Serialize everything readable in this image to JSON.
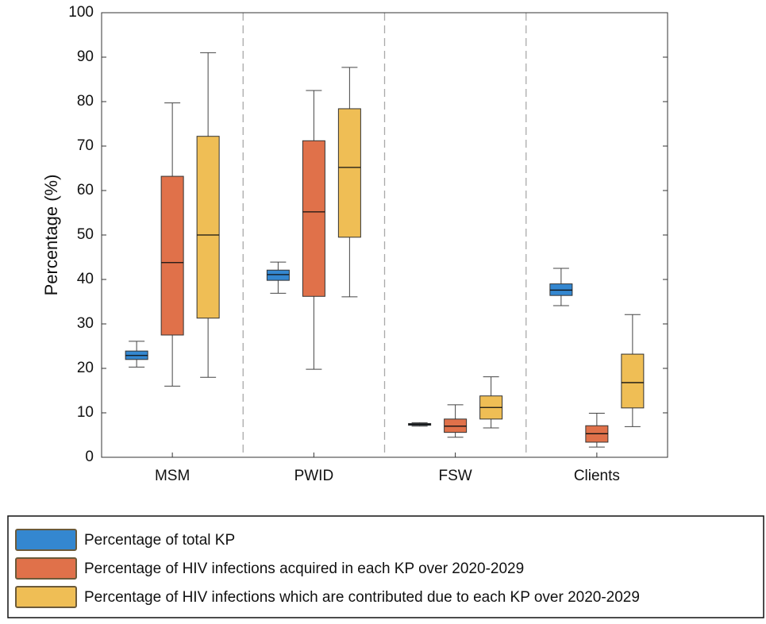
{
  "chart_data": {
    "type": "box",
    "ylabel": "Percentage (%)",
    "categories": [
      "MSM",
      "PWID",
      "FSW",
      "Clients"
    ],
    "ylim": [
      0,
      100
    ],
    "yticks": [
      0,
      10,
      20,
      30,
      40,
      50,
      60,
      70,
      80,
      90,
      100
    ],
    "grid": false,
    "legend": "bottom",
    "series": [
      {
        "name": "Percentage of total KP",
        "color": "#3487d0",
        "min": [
          20.3,
          36.9,
          7.0,
          34.1
        ],
        "q1": [
          22.0,
          39.8,
          7.2,
          36.4
        ],
        "median": [
          22.9,
          41.1,
          7.4,
          37.6
        ],
        "q3": [
          23.9,
          42.1,
          7.6,
          39.0
        ],
        "max": [
          26.1,
          43.9,
          7.8,
          42.5
        ]
      },
      {
        "name": "Percentage of HIV infections acquired in each KP over 2020-2029",
        "color": "#e0714a",
        "min": [
          16.0,
          19.8,
          4.5,
          2.3
        ],
        "q1": [
          27.5,
          36.2,
          5.6,
          3.4
        ],
        "median": [
          43.8,
          55.2,
          7.0,
          5.3
        ],
        "q3": [
          63.2,
          71.2,
          8.6,
          7.1
        ],
        "max": [
          79.7,
          82.5,
          11.8,
          9.9
        ]
      },
      {
        "name": "Percentage of HIV infections which are contributed due to each KP over 2020-2029",
        "color": "#efbe55",
        "min": [
          18.0,
          36.1,
          6.6,
          6.9
        ],
        "q1": [
          31.3,
          49.5,
          8.6,
          11.1
        ],
        "median": [
          50.0,
          65.2,
          11.2,
          16.8
        ],
        "q3": [
          72.2,
          78.4,
          13.8,
          23.2
        ],
        "max": [
          91.0,
          87.7,
          18.1,
          32.1
        ]
      }
    ]
  }
}
